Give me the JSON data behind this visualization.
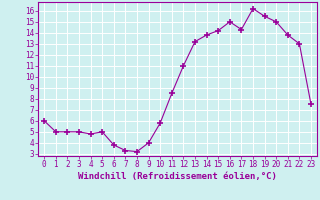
{
  "x": [
    0,
    1,
    2,
    3,
    4,
    5,
    6,
    7,
    8,
    9,
    10,
    11,
    12,
    13,
    14,
    15,
    16,
    17,
    18,
    19,
    20,
    21,
    22,
    23
  ],
  "y": [
    6.0,
    5.0,
    5.0,
    5.0,
    4.8,
    5.0,
    3.8,
    3.3,
    3.2,
    4.0,
    5.8,
    8.5,
    11.0,
    13.2,
    13.8,
    14.2,
    15.0,
    14.3,
    16.2,
    15.5,
    15.0,
    13.8,
    13.0,
    7.5
  ],
  "line_color": "#990099",
  "marker": "+",
  "marker_size": 4,
  "marker_linewidth": 1.2,
  "background_color": "#cff0f0",
  "grid_color": "#ffffff",
  "xlabel": "Windchill (Refroidissement éolien,°C)",
  "xlabel_fontsize": 6.5,
  "xlim": [
    -0.5,
    23.5
  ],
  "ylim": [
    2.8,
    16.8
  ],
  "yticks": [
    3,
    4,
    5,
    6,
    7,
    8,
    9,
    10,
    11,
    12,
    13,
    14,
    15,
    16
  ],
  "xticks": [
    0,
    1,
    2,
    3,
    4,
    5,
    6,
    7,
    8,
    9,
    10,
    11,
    12,
    13,
    14,
    15,
    16,
    17,
    18,
    19,
    20,
    21,
    22,
    23
  ],
  "tick_fontsize": 5.5,
  "tick_color": "#990099",
  "spine_color": "#990099",
  "linewidth": 0.8
}
